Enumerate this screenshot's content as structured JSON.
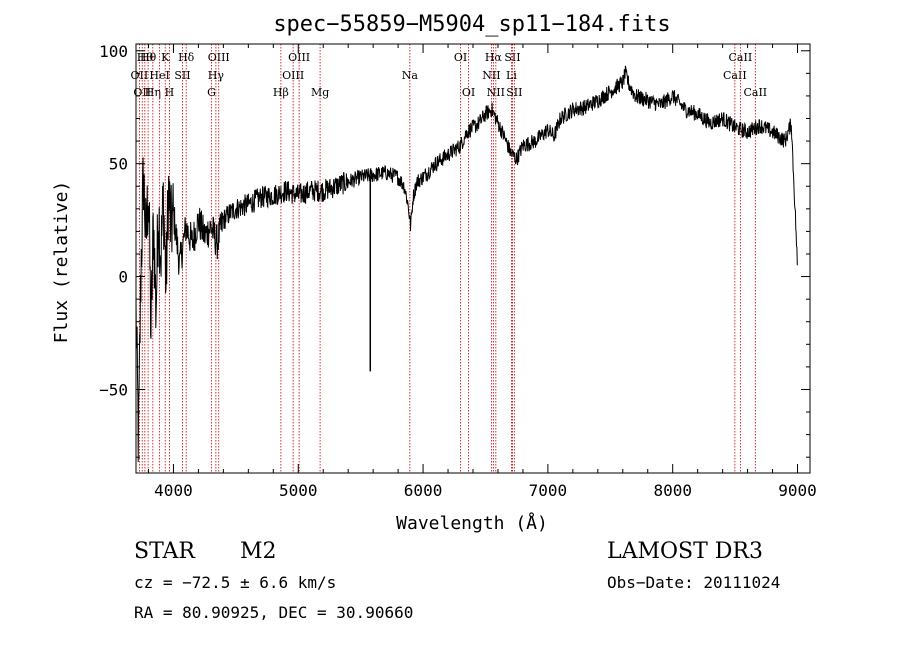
{
  "chart_data": {
    "type": "line",
    "title": "spec−55859−M5904_sp11−184.fits",
    "xlabel": "Wavelength (Å)",
    "ylabel": "Flux (relative)",
    "xlim": [
      3700,
      9100
    ],
    "ylim": [
      -87,
      103
    ],
    "xticks": [
      4000,
      5000,
      6000,
      7000,
      8000,
      9000
    ],
    "xtick_labels": [
      "4000",
      "5000",
      "6000",
      "7000",
      "8000",
      "9000"
    ],
    "yticks": [
      -50,
      0,
      50,
      100
    ],
    "ytick_labels": [
      "−50",
      "0",
      "50",
      "100"
    ],
    "grid": false,
    "line_color": "#000000",
    "marker_color": "#cc0000",
    "series": [
      {
        "name": "spectrum",
        "x": [
          3700,
          3720,
          3740,
          3760,
          3780,
          3800,
          3820,
          3840,
          3860,
          3880,
          3900,
          3920,
          3940,
          3960,
          3980,
          4000,
          4050,
          4100,
          4150,
          4200,
          4250,
          4300,
          4350,
          4400,
          4450,
          4500,
          4600,
          4700,
          4800,
          4900,
          5000,
          5100,
          5200,
          5300,
          5400,
          5500,
          5600,
          5700,
          5800,
          5850,
          5880,
          5900,
          5920,
          5950,
          6000,
          6100,
          6200,
          6300,
          6350,
          6400,
          6450,
          6500,
          6550,
          6600,
          6650,
          6700,
          6750,
          6800,
          6900,
          7000,
          7050,
          7100,
          7200,
          7300,
          7400,
          7500,
          7600,
          7620,
          7650,
          7700,
          7800,
          7900,
          8000,
          8100,
          8200,
          8300,
          8400,
          8500,
          8600,
          8700,
          8800,
          8900,
          8950,
          9000
        ],
        "y": [
          -15,
          -75,
          5,
          45,
          15,
          40,
          -25,
          25,
          -15,
          30,
          10,
          35,
          -5,
          40,
          20,
          28,
          5,
          22,
          15,
          25,
          18,
          22,
          15,
          25,
          28,
          30,
          32,
          35,
          36,
          38,
          36,
          38,
          38,
          40,
          42,
          44,
          45,
          46,
          44,
          40,
          32,
          22,
          35,
          42,
          44,
          50,
          54,
          58,
          64,
          66,
          68,
          72,
          74,
          68,
          62,
          55,
          52,
          58,
          60,
          65,
          62,
          70,
          74,
          75,
          78,
          82,
          86,
          90,
          85,
          80,
          78,
          76,
          80,
          74,
          72,
          68,
          70,
          66,
          64,
          67,
          64,
          60,
          68,
          5
        ]
      }
    ],
    "spike": {
      "x": 5577,
      "y": -42
    },
    "line_markers": [
      {
        "x": 3727,
        "label": "OII",
        "row": 2
      },
      {
        "x": 3750,
        "label": "OII",
        "row": 3
      },
      {
        "x": 3771,
        "label": "Hθ",
        "row": 1
      },
      {
        "x": 3797,
        "label": "Hθ",
        "row": 1
      },
      {
        "x": 3835,
        "label": "Hη",
        "row": 3
      },
      {
        "x": 3889,
        "label": "HeI",
        "row": 2
      },
      {
        "x": 3934,
        "label": "K",
        "row": 1
      },
      {
        "x": 3968,
        "label": "H",
        "row": 3
      },
      {
        "x": 4072,
        "label": "SII",
        "row": 2
      },
      {
        "x": 4102,
        "label": "Hδ",
        "row": 1
      },
      {
        "x": 4305,
        "label": "G",
        "row": 3
      },
      {
        "x": 4340,
        "label": "Hγ",
        "row": 2
      },
      {
        "x": 4363,
        "label": "OIII",
        "row": 1
      },
      {
        "x": 4861,
        "label": "Hβ",
        "row": 3
      },
      {
        "x": 4959,
        "label": "OIII",
        "row": 2
      },
      {
        "x": 5007,
        "label": "OIII",
        "row": 1
      },
      {
        "x": 5175,
        "label": "Mg",
        "row": 3
      },
      {
        "x": 5894,
        "label": "Na",
        "row": 2
      },
      {
        "x": 6300,
        "label": "OI",
        "row": 1
      },
      {
        "x": 6364,
        "label": "OI",
        "row": 3
      },
      {
        "x": 6548,
        "label": "NII",
        "row": 2
      },
      {
        "x": 6563,
        "label": "Hα",
        "row": 1
      },
      {
        "x": 6583,
        "label": "NII",
        "row": 3
      },
      {
        "x": 6708,
        "label": "Li",
        "row": 2
      },
      {
        "x": 6716,
        "label": "SII",
        "row": 1
      },
      {
        "x": 6731,
        "label": "SII",
        "row": 3
      },
      {
        "x": 8498,
        "label": "CaII",
        "row": 2
      },
      {
        "x": 8542,
        "label": "CaII",
        "row": 1
      },
      {
        "x": 8662,
        "label": "CaII",
        "row": 3
      }
    ]
  },
  "info": {
    "class": "STAR",
    "subclass": "M2",
    "survey": "LAMOST DR3",
    "redshift": "cz = −72.5 ± 6.6 km/s",
    "obs_date": "Obs−Date: 20111024",
    "coords": "RA =  80.90925, DEC =  30.90660"
  }
}
